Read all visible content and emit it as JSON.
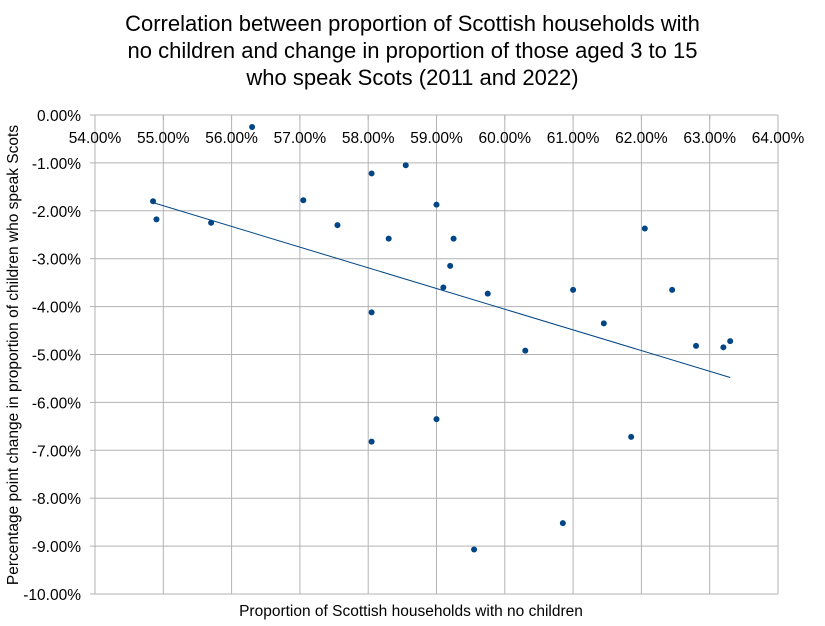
{
  "chart_data": {
    "type": "scatter",
    "title_lines": [
      "Correlation between proportion of Scottish households with",
      "no children and change in proportion of those aged 3 to 15",
      "who speak Scots (2011 and 2022)"
    ],
    "xlabel": "Proportion of Scottish households with no children",
    "ylabel": "Percentage point change in proportion of children who speak Scots",
    "xlim": [
      54,
      64
    ],
    "ylim": [
      -10,
      0
    ],
    "x_ticks": [
      "54.00%",
      "55.00%",
      "56.00%",
      "57.00%",
      "58.00%",
      "59.00%",
      "60.00%",
      "61.00%",
      "62.00%",
      "63.00%",
      "64.00%"
    ],
    "y_ticks": [
      "0.00%",
      "-1.00%",
      "-2.00%",
      "-3.00%",
      "-4.00%",
      "-5.00%",
      "-6.00%",
      "-7.00%",
      "-8.00%",
      "-9.00%",
      "-10.00%"
    ],
    "grid": true,
    "marker_color": "#004586",
    "trendline": {
      "x": [
        54.85,
        63.3
      ],
      "y": [
        -1.83,
        -5.48
      ],
      "color": "#004586"
    },
    "points": [
      {
        "x": 54.85,
        "y": -1.8
      },
      {
        "x": 54.9,
        "y": -2.18
      },
      {
        "x": 55.7,
        "y": -2.25
      },
      {
        "x": 56.3,
        "y": -0.25
      },
      {
        "x": 57.05,
        "y": -1.78
      },
      {
        "x": 57.55,
        "y": -2.3
      },
      {
        "x": 58.05,
        "y": -1.22
      },
      {
        "x": 58.05,
        "y": -4.12
      },
      {
        "x": 58.05,
        "y": -6.82
      },
      {
        "x": 58.3,
        "y": -2.58
      },
      {
        "x": 58.55,
        "y": -1.05
      },
      {
        "x": 59.0,
        "y": -1.87
      },
      {
        "x": 59.0,
        "y": -6.35
      },
      {
        "x": 59.1,
        "y": -3.6
      },
      {
        "x": 59.2,
        "y": -3.15
      },
      {
        "x": 59.25,
        "y": -2.58
      },
      {
        "x": 59.55,
        "y": -9.07
      },
      {
        "x": 59.75,
        "y": -3.73
      },
      {
        "x": 60.3,
        "y": -4.92
      },
      {
        "x": 60.85,
        "y": -8.52
      },
      {
        "x": 61.0,
        "y": -3.65
      },
      {
        "x": 61.45,
        "y": -4.35
      },
      {
        "x": 61.85,
        "y": -6.72
      },
      {
        "x": 62.05,
        "y": -2.37
      },
      {
        "x": 62.45,
        "y": -3.65
      },
      {
        "x": 62.8,
        "y": -4.82
      },
      {
        "x": 63.2,
        "y": -4.85
      },
      {
        "x": 63.3,
        "y": -4.72
      }
    ]
  }
}
